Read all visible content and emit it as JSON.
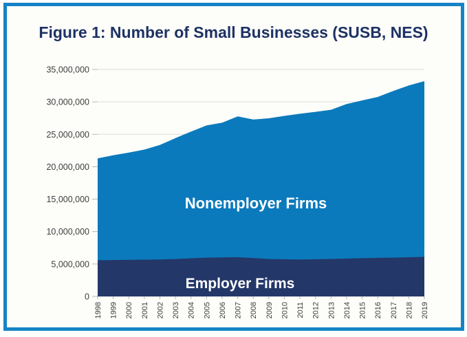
{
  "figure": {
    "title": "Figure 1: Number of Small Businesses (SUSB, NES)"
  },
  "colors": {
    "frame_border": "#1583c5",
    "card_background": "#fdfdfa",
    "title_text": "#1d3264",
    "nonemployer_fill": "#0b7abc",
    "employer_fill": "#233768",
    "series_label_text": "#ffffff",
    "axis_text": "#3d3d3d",
    "gridline": "#dcdcdc",
    "tick": "#b5b5b5"
  },
  "chart_data": {
    "type": "area",
    "stacked": true,
    "title": "Figure 1: Number of Small Businesses (SUSB, NES)",
    "xlabel": "",
    "ylabel": "",
    "grid": "horizontal",
    "legend_position": "labels-inside-areas",
    "x": [
      "1998",
      "1999",
      "2000",
      "2001",
      "2002",
      "2003",
      "2004",
      "2005",
      "2006",
      "2007",
      "2008",
      "2009",
      "2010",
      "2011",
      "2012",
      "2013",
      "2014",
      "2015",
      "2016",
      "2017",
      "2018",
      "2019"
    ],
    "series": [
      {
        "name": "Employer Firms",
        "stack_position": "bottom",
        "values": [
          5580000,
          5610000,
          5650000,
          5660000,
          5700000,
          5770000,
          5890000,
          5980000,
          6020000,
          6050000,
          5930000,
          5770000,
          5730000,
          5680000,
          5730000,
          5780000,
          5830000,
          5900000,
          5950000,
          5980000,
          6050000,
          6100000
        ]
      },
      {
        "name": "Nonemployer Firms",
        "stack_position": "top",
        "values": [
          15710000,
          16150000,
          16530000,
          16980000,
          17650000,
          18650000,
          19520000,
          20390000,
          20770000,
          21710000,
          21350000,
          21700000,
          22110000,
          22490000,
          22740000,
          23000000,
          23840000,
          24330000,
          24810000,
          25700000,
          26490000,
          27100000
        ]
      }
    ],
    "ylim": [
      0,
      35000000
    ],
    "ytick_interval": 5000000,
    "ytick_labels": [
      "0",
      "5,000,000",
      "10,000,000",
      "15,000,000",
      "20,000,000",
      "25,000,000",
      "30,000,000",
      "35,000,000"
    ]
  }
}
